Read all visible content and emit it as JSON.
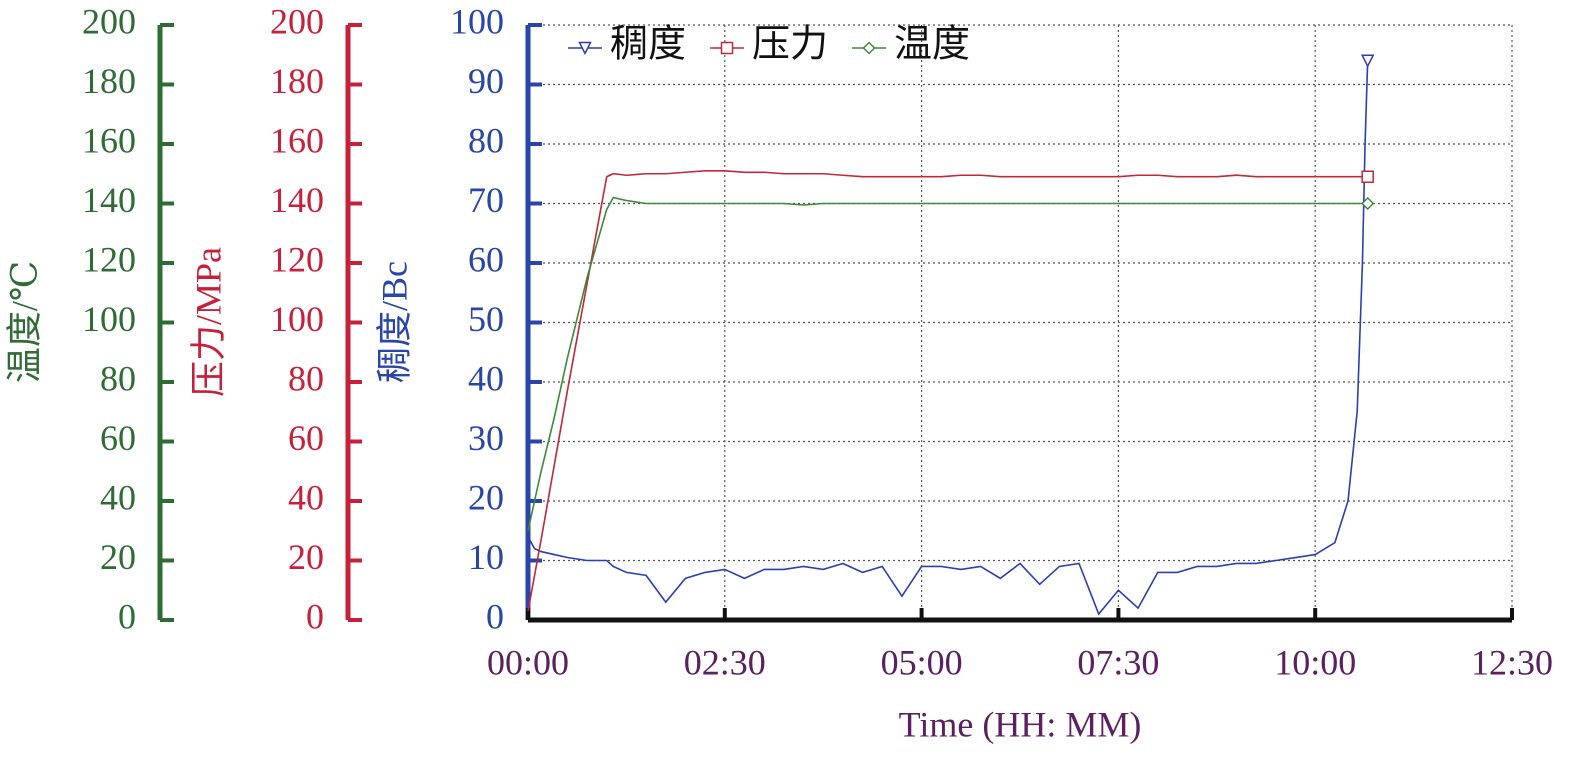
{
  "chart_data": {
    "type": "line",
    "x_label": "Time (HH: MM)",
    "y_label": "稠度/Bc",
    "y2_label": "压力/MPa",
    "y3_label": "温度/℃",
    "x": [
      0,
      5,
      10,
      20,
      30,
      45,
      60,
      65,
      75,
      90,
      105,
      120,
      135,
      150,
      165,
      180,
      195,
      210,
      225,
      240,
      255,
      270,
      285,
      300,
      315,
      330,
      345,
      360,
      375,
      390,
      405,
      420,
      435,
      450,
      465,
      480,
      495,
      510,
      525,
      540,
      555,
      570,
      585,
      600,
      615,
      625,
      632,
      636,
      638,
      640
    ],
    "xlim": [
      0,
      750
    ],
    "xticks": [
      {
        "value": 0,
        "label": "00:00"
      },
      {
        "value": 150,
        "label": "02:30"
      },
      {
        "value": 300,
        "label": "05:00"
      },
      {
        "value": 450,
        "label": "07:30"
      },
      {
        "value": 600,
        "label": "10:00"
      },
      {
        "value": 750,
        "label": "12:30"
      }
    ],
    "ylim": [
      0,
      100
    ],
    "yticks": [
      0,
      10,
      20,
      30,
      40,
      50,
      60,
      70,
      80,
      90,
      100
    ],
    "y2lim": [
      0,
      200
    ],
    "y2ticks": [
      0,
      20,
      40,
      60,
      80,
      100,
      120,
      140,
      160,
      180,
      200
    ],
    "y3lim": [
      0,
      200
    ],
    "y3ticks": [
      0,
      20,
      40,
      60,
      80,
      100,
      120,
      140,
      160,
      180,
      200
    ],
    "grid": true,
    "legend": "top-left",
    "series": [
      {
        "name": "稠度",
        "color": "#2b3fb0",
        "marker": "triangle",
        "axis": "y",
        "values": [
          14,
          12,
          11.5,
          11,
          10.5,
          10,
          10,
          9,
          8,
          7.5,
          3,
          7,
          8,
          8.5,
          7,
          8.5,
          8.5,
          9,
          8.5,
          9.5,
          8,
          9,
          4,
          9,
          9,
          8.5,
          9,
          7,
          9.5,
          6,
          9,
          9.5,
          1,
          5,
          2,
          8,
          8,
          9,
          9,
          9.5,
          9.5,
          10,
          10.5,
          11,
          13,
          20,
          35,
          60,
          80,
          94
        ]
      },
      {
        "name": "压力",
        "color": "#c0283c",
        "marker": "square",
        "axis": "y2",
        "values": [
          3,
          15,
          27,
          52,
          77,
          113,
          149,
          150,
          149.5,
          150,
          150,
          150.5,
          151,
          151,
          150.5,
          150.5,
          150,
          150,
          150,
          149.5,
          149,
          149,
          149,
          149,
          149,
          149.5,
          149.5,
          149,
          149,
          149,
          149,
          149,
          149,
          149,
          149.5,
          149.5,
          149,
          149,
          149,
          149.5,
          149,
          149,
          149,
          149,
          149,
          149,
          149,
          149,
          149,
          149
        ]
      },
      {
        "name": "温度",
        "color": "#3a8a3a",
        "marker": "diamond",
        "axis": "y3",
        "values": [
          30,
          40,
          50,
          68,
          88,
          115,
          138,
          142,
          141,
          140,
          140,
          140,
          140,
          140,
          140,
          140,
          140,
          139.5,
          140,
          140,
          140,
          140,
          140,
          140,
          140,
          140,
          140,
          140,
          140,
          140,
          140,
          140,
          140,
          140,
          140,
          140,
          140,
          140,
          140,
          140,
          140,
          140,
          140,
          140,
          140,
          140,
          140,
          140,
          140,
          140
        ]
      }
    ]
  }
}
